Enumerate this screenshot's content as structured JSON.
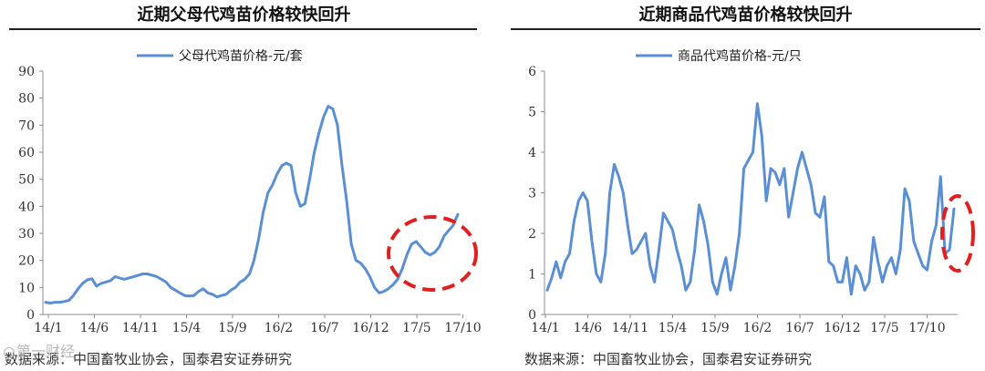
{
  "left_panel": {
    "title": "近期父母代鸡苗价格较快回升",
    "source": "数据来源：中国畜牧业协会，国泰君安证券研究"
  },
  "right_panel": {
    "title": "近期商品代鸡苗价格较快回升",
    "source": "数据来源：中国畜牧业协会，国泰君安证券研究"
  },
  "watermark": "第一财经",
  "chart_data": [
    {
      "type": "line",
      "legend": "父母代鸡苗价格-元/套",
      "legend_position": "top-center",
      "grid": false,
      "x_tick_labels": [
        "14/1",
        "14/6",
        "14/11",
        "15/4",
        "15/9",
        "16/2",
        "16/7",
        "16/12",
        "17/5",
        "17/10"
      ],
      "ylim": [
        0,
        90
      ],
      "yticks": [
        0,
        10,
        20,
        30,
        40,
        50,
        60,
        70,
        80,
        90
      ],
      "color": "#5b8fd4",
      "highlight_circle_color": "#e02020",
      "series": [
        {
          "values": [
            4.5,
            4.2,
            4.5,
            4.5,
            4.8,
            5.2,
            7,
            9.5,
            11.5,
            12.8,
            13.2,
            10.5,
            11.5,
            12,
            12.5,
            14,
            13.5,
            13,
            13.5,
            14,
            14.5,
            15,
            15,
            14.5,
            14,
            13,
            12,
            10,
            9,
            8,
            7,
            6.8,
            7,
            8.5,
            9.5,
            8,
            7.5,
            6.5,
            7,
            7.5,
            9,
            10,
            12,
            13,
            15,
            20,
            28,
            38,
            45,
            48,
            52,
            55,
            56,
            55,
            45,
            40,
            41,
            50,
            60,
            67,
            73,
            77,
            76,
            70,
            55,
            42,
            26,
            20,
            19,
            17,
            14,
            10,
            8,
            8.5,
            9.5,
            11,
            13,
            17,
            22,
            26,
            27,
            25,
            23,
            22,
            23,
            25,
            29,
            31,
            33,
            37
          ]
        }
      ]
    },
    {
      "type": "line",
      "legend": "商品代鸡苗价格-元/只",
      "legend_position": "top-center",
      "grid": false,
      "x_tick_labels": [
        "14/1",
        "14/6",
        "14/11",
        "15/4",
        "15/9",
        "16/2",
        "16/7",
        "16/12",
        "17/5",
        "17/10"
      ],
      "ylim": [
        0,
        6
      ],
      "yticks": [
        0,
        1,
        2,
        3,
        4,
        5,
        6
      ],
      "color": "#5b8fd4",
      "highlight_circle_color": "#e02020",
      "series": [
        {
          "values": [
            0.6,
            0.9,
            1.3,
            0.9,
            1.3,
            1.5,
            2.3,
            2.8,
            3.0,
            2.8,
            1.8,
            1.0,
            0.8,
            1.5,
            3.0,
            3.7,
            3.4,
            3.0,
            2.2,
            1.5,
            1.6,
            1.8,
            2.0,
            1.2,
            0.8,
            1.6,
            2.5,
            2.3,
            2.1,
            1.6,
            1.2,
            0.6,
            0.8,
            1.6,
            2.7,
            2.3,
            1.7,
            0.8,
            0.5,
            1.0,
            1.4,
            0.6,
            1.2,
            2.0,
            3.6,
            3.8,
            4.0,
            5.2,
            4.4,
            2.8,
            3.6,
            3.5,
            3.2,
            3.6,
            2.4,
            3.0,
            3.6,
            4.0,
            3.6,
            3.2,
            2.5,
            2.4,
            2.9,
            1.3,
            1.2,
            0.8,
            0.8,
            1.4,
            0.5,
            1.2,
            1.0,
            0.6,
            0.8,
            1.9,
            1.3,
            0.8,
            1.2,
            1.4,
            1.0,
            1.6,
            3.1,
            2.8,
            1.8,
            1.5,
            1.2,
            1.1,
            1.8,
            2.2,
            3.4,
            1.5,
            1.6,
            2.6
          ]
        }
      ]
    }
  ]
}
